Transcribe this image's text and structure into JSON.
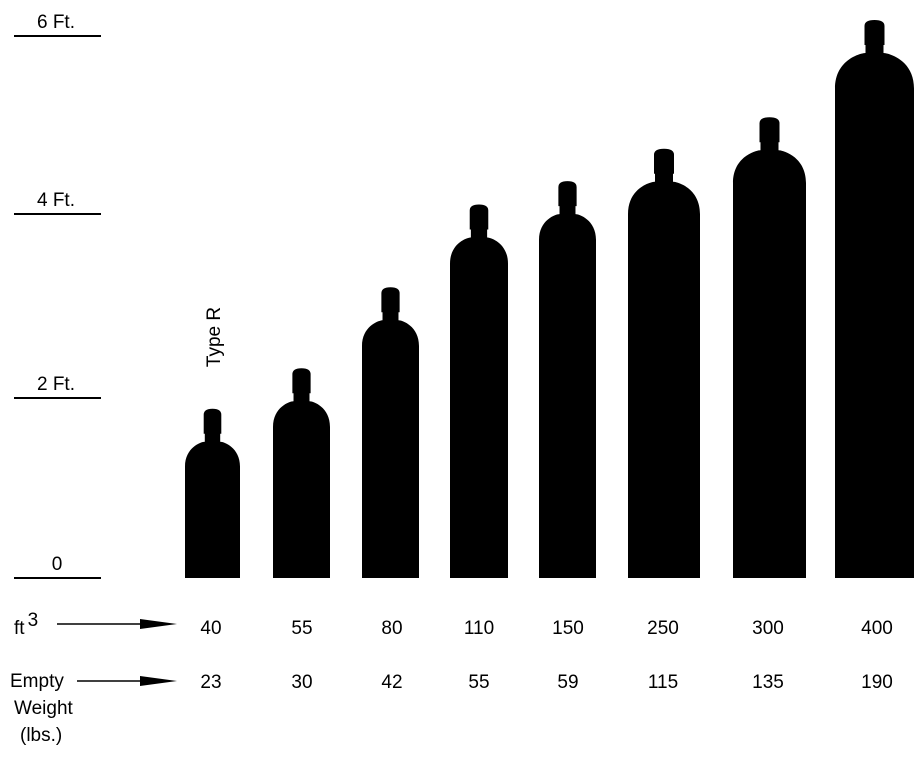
{
  "scale": {
    "ticks": [
      {
        "label": "6 Ft.",
        "feet": 6
      },
      {
        "label": "4 Ft.",
        "feet": 4
      },
      {
        "label": "2 Ft.",
        "feet": 2
      },
      {
        "label": "0",
        "feet": 0
      }
    ]
  },
  "type_label": "Type R",
  "rows": {
    "capacity": {
      "label": "ft",
      "superscript": "3"
    },
    "weight": {
      "label_lines": [
        "Empty",
        "Weight",
        "(lbs.)"
      ]
    }
  },
  "cylinders": [
    {
      "capacity": "40",
      "empty_weight": "23",
      "height_ft": 1.88
    },
    {
      "capacity": "55",
      "empty_weight": "30",
      "height_ft": 2.33
    },
    {
      "capacity": "80",
      "empty_weight": "42",
      "height_ft": 3.23
    },
    {
      "capacity": "110",
      "empty_weight": "55",
      "height_ft": 4.15
    },
    {
      "capacity": "150",
      "empty_weight": "59",
      "height_ft": 4.41
    },
    {
      "capacity": "250",
      "empty_weight": "115",
      "height_ft": 4.77
    },
    {
      "capacity": "300",
      "empty_weight": "135",
      "height_ft": 5.12
    },
    {
      "capacity": "400",
      "empty_weight": "190",
      "height_ft": 6.2
    }
  ],
  "colors": {
    "ink": "#000000",
    "background": "#ffffff"
  }
}
